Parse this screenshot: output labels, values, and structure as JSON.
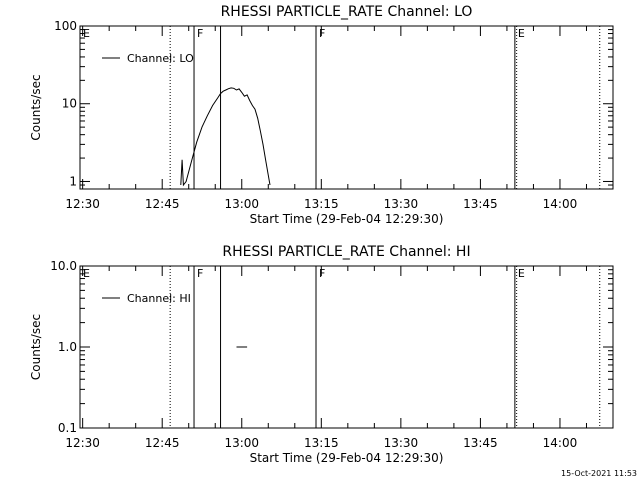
{
  "footer": {
    "timestamp": "15-Oct-2021 11:53"
  },
  "chart_data": [
    {
      "type": "line",
      "title": "RHESSI PARTICLE_RATE Channel: LO",
      "xlabel": "Start Time (29-Feb-04 12:29:30)",
      "ylabel": "Counts/sec",
      "ylog": true,
      "ylim": [
        0.8,
        100
      ],
      "yticks": [
        {
          "value": 1,
          "label": "1"
        },
        {
          "value": 10,
          "label": "10"
        },
        {
          "value": 100,
          "label": "100"
        }
      ],
      "xlim": [
        "12:29:30",
        "14:10:00"
      ],
      "xticks": [
        "12:30",
        "12:45",
        "13:00",
        "13:15",
        "13:30",
        "13:45",
        "14:00"
      ],
      "legend": {
        "position": "top-left",
        "entries": [
          "Channel: LO"
        ]
      },
      "series": [
        {
          "name": "Channel: LO",
          "x": [
            "12:48:30",
            "12:48:45",
            "12:49:00",
            "12:49:30",
            "12:50:30",
            "12:51:30",
            "12:52:30",
            "12:53:30",
            "12:54:30",
            "12:55:30",
            "12:56:00",
            "12:56:30",
            "12:57:00",
            "12:57:30",
            "12:58:00",
            "12:58:30",
            "12:59:00",
            "12:59:30",
            "13:00:00",
            "13:00:30",
            "13:01:00",
            "13:01:30",
            "13:02:00",
            "13:02:30",
            "13:03:00",
            "13:03:30",
            "13:04:00",
            "13:04:30",
            "13:05:00",
            "13:05:20"
          ],
          "y": [
            0.9,
            1.9,
            0.9,
            1.0,
            1.8,
            3.2,
            5.0,
            7.0,
            9.5,
            12.0,
            13.5,
            14.5,
            15.0,
            15.6,
            16.0,
            15.8,
            15.0,
            15.5,
            14.0,
            12.5,
            13.0,
            11.0,
            9.5,
            8.5,
            6.5,
            4.5,
            3.0,
            1.9,
            1.2,
            0.9
          ]
        }
      ],
      "flags": [
        {
          "label": "E",
          "time": "12:29:30",
          "style": "dotted"
        },
        {
          "label": "",
          "time": "12:46:30",
          "style": "dotted"
        },
        {
          "label": "F",
          "time": "12:51:00",
          "style": "solid"
        },
        {
          "label": "",
          "time": "12:56:00",
          "style": "solid"
        },
        {
          "label": "F",
          "time": "13:14:00",
          "style": "solid"
        },
        {
          "label": "E",
          "time": "13:51:30",
          "style": "solid"
        },
        {
          "label": "",
          "time": "13:51:50",
          "style": "dotted"
        },
        {
          "label": "",
          "time": "14:07:30",
          "style": "dotted"
        }
      ]
    },
    {
      "type": "line",
      "title": "RHESSI PARTICLE_RATE Channel: HI",
      "xlabel": "Start Time (29-Feb-04 12:29:30)",
      "ylabel": "Counts/sec",
      "ylog": true,
      "ylim": [
        0.1,
        10
      ],
      "yticks": [
        {
          "value": 0.1,
          "label": "0.1"
        },
        {
          "value": 1,
          "label": "1.0"
        },
        {
          "value": 10,
          "label": "10.0"
        }
      ],
      "xlim": [
        "12:29:30",
        "14:10:00"
      ],
      "xticks": [
        "12:30",
        "12:45",
        "13:00",
        "13:15",
        "13:30",
        "13:45",
        "14:00"
      ],
      "legend": {
        "position": "top-left",
        "entries": [
          "Channel: HI"
        ]
      },
      "series": [
        {
          "name": "Channel: HI",
          "x": [
            "12:59:00",
            "13:01:00"
          ],
          "y": [
            1.0,
            1.0
          ]
        }
      ],
      "flags": [
        {
          "label": "E",
          "time": "12:29:30",
          "style": "dotted"
        },
        {
          "label": "",
          "time": "12:46:30",
          "style": "dotted"
        },
        {
          "label": "F",
          "time": "12:51:00",
          "style": "solid"
        },
        {
          "label": "",
          "time": "12:56:00",
          "style": "solid"
        },
        {
          "label": "F",
          "time": "13:14:00",
          "style": "solid"
        },
        {
          "label": "E",
          "time": "13:51:30",
          "style": "solid"
        },
        {
          "label": "",
          "time": "13:51:50",
          "style": "dotted"
        },
        {
          "label": "",
          "time": "14:07:30",
          "style": "dotted"
        }
      ]
    }
  ]
}
